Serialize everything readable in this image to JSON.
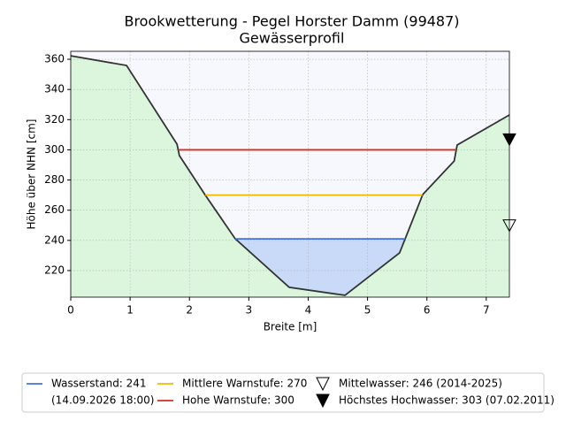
{
  "chart_data": {
    "type": "profile",
    "title": "Brookwetterung - Pegel Horster Damm (99487)",
    "subtitle": "Gewässerprofil",
    "x_label": "Breite [m]",
    "y_label": "Höhe über NHN [cm]",
    "xlim": [
      0,
      7.39
    ],
    "ylim": [
      202.4,
      365.3
    ],
    "xticks": [
      0,
      1,
      2,
      3,
      4,
      5,
      6,
      7
    ],
    "yticks": [
      220,
      240,
      260,
      280,
      300,
      320,
      340,
      360
    ],
    "grid": true,
    "profile": {
      "color": "#333333",
      "ground_color": "#dcf6de",
      "sky_color": "#f7f7fe",
      "x": [
        0,
        0.94,
        1.79,
        1.83,
        2.26,
        2.77,
        3.68,
        4.62,
        5.54,
        5.93,
        6.46,
        6.51,
        7.39
      ],
      "y": [
        362.3,
        355.9,
        303.8,
        296.2,
        270.4,
        241.1,
        208.9,
        203.6,
        231.7,
        270.4,
        292.6,
        303.2,
        323.1
      ]
    },
    "levels": [
      {
        "name": "Wasserstand: 241",
        "timestamp": "(14.09.2026 18:00)",
        "value": 241,
        "color": "#4472d9",
        "fill": "#c9d9f8"
      },
      {
        "name": "Mittlere Warnstufe: 270",
        "value": 270,
        "color": "#f5b800"
      },
      {
        "name": "Hohe Warnstufe: 300",
        "value": 300,
        "color": "#d62c20"
      }
    ],
    "markers": [
      {
        "name": "Mittelwasser: 246 (2014-2025)",
        "value": 246,
        "filled": false
      },
      {
        "name": "Höchstes Hochwasser: 303 (07.02.2011)",
        "value": 303,
        "filled": true
      }
    ]
  }
}
